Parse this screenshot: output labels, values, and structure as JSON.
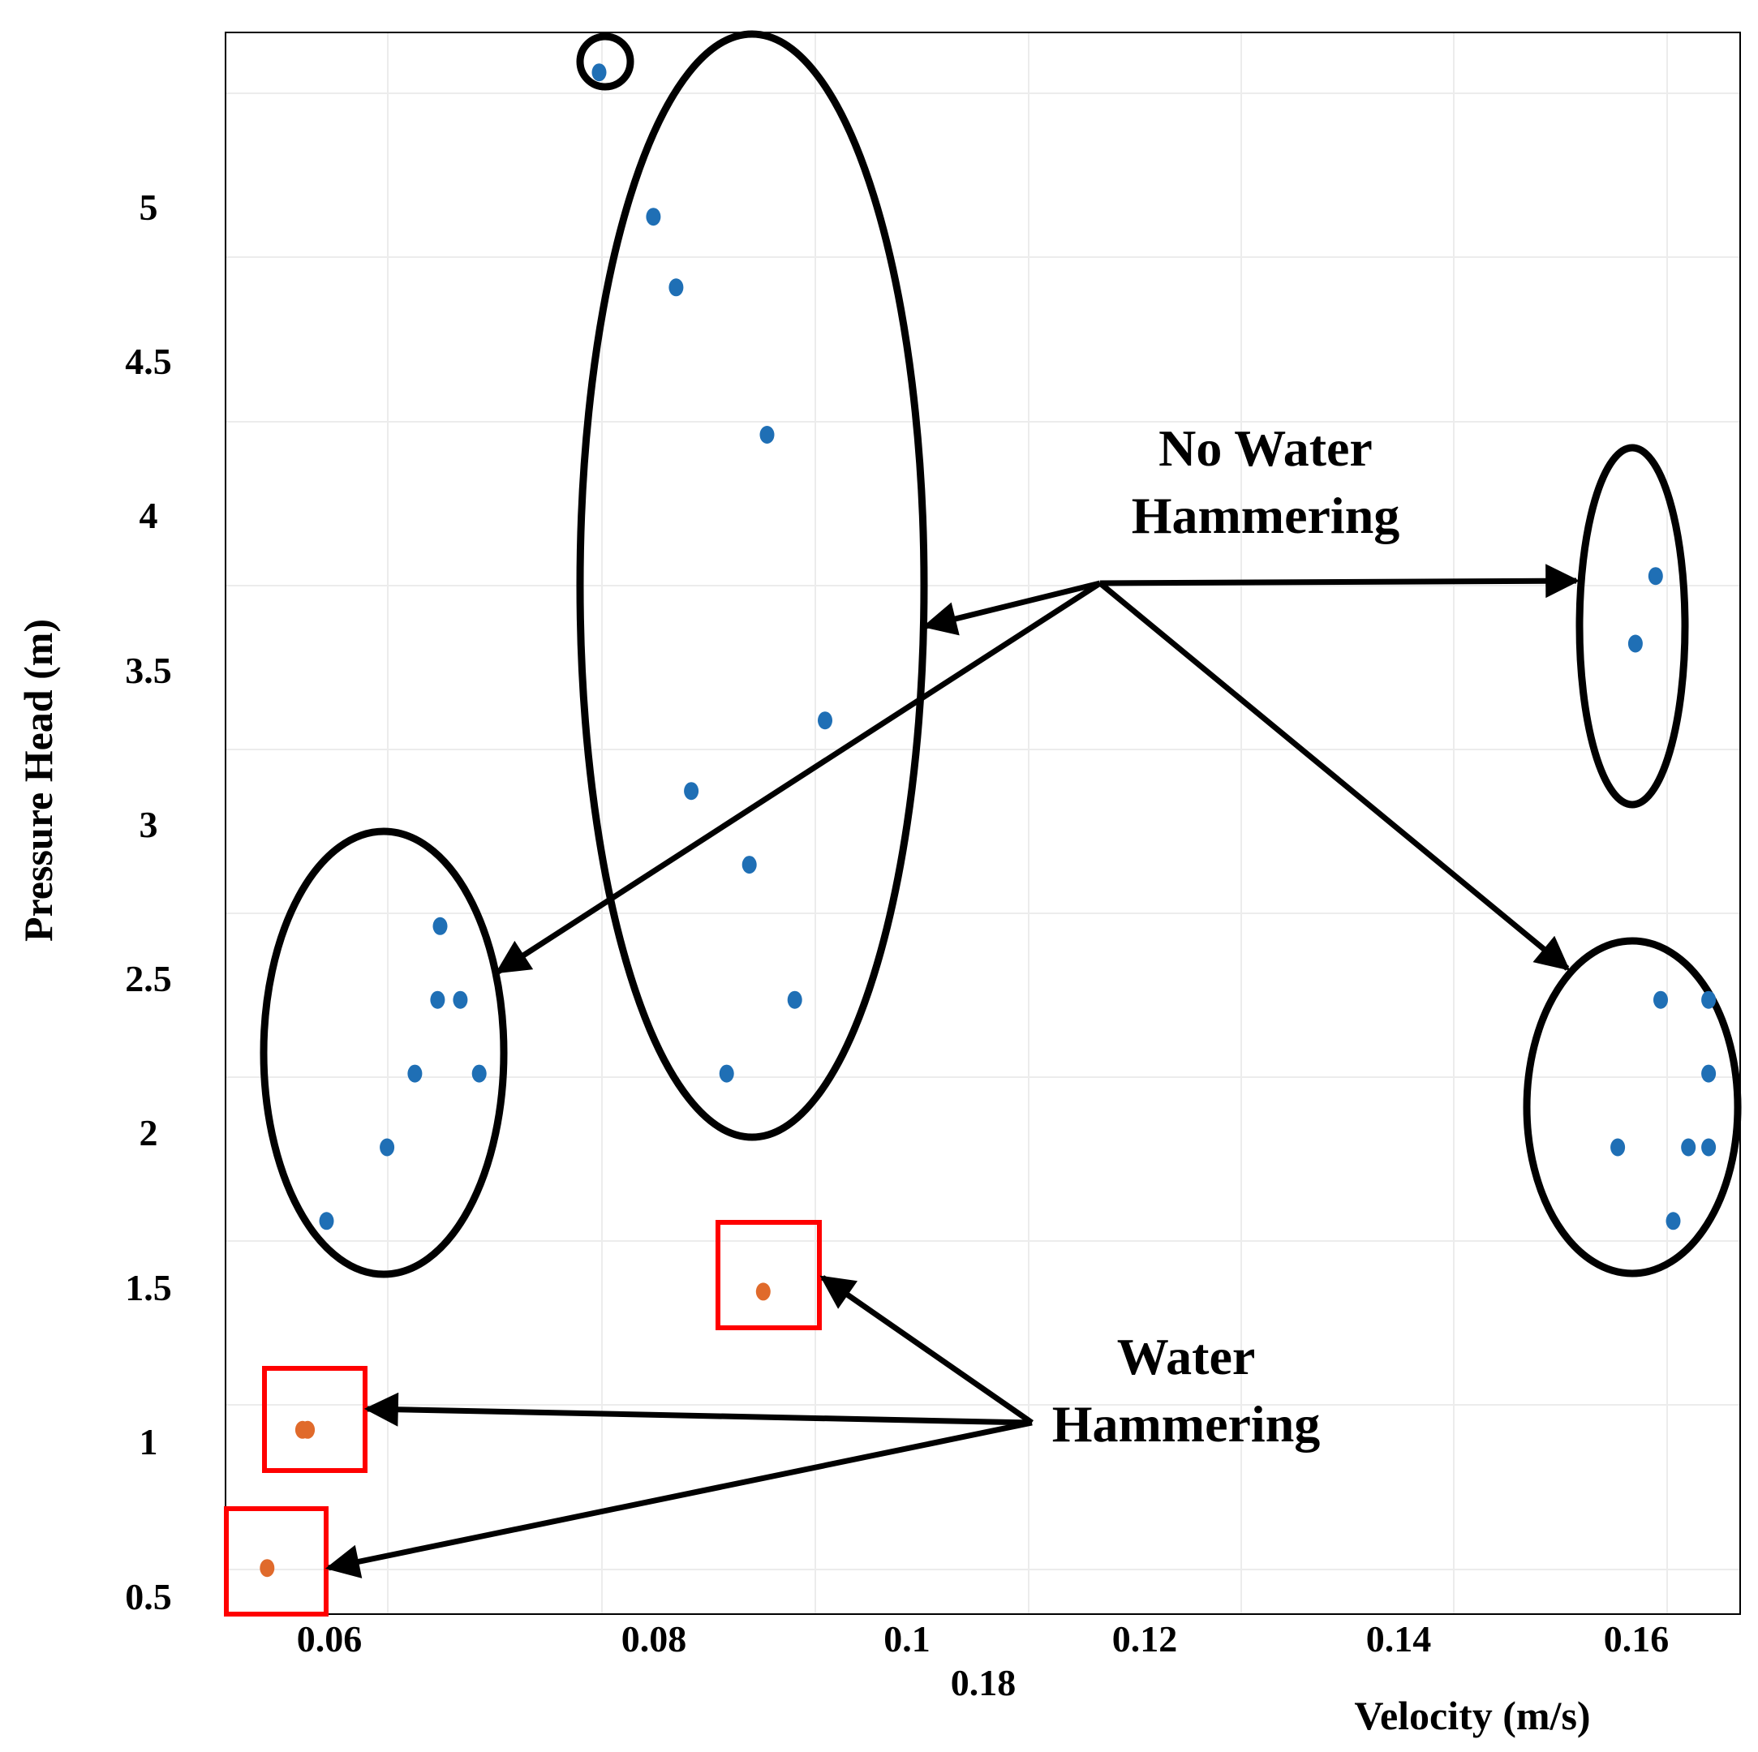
{
  "chart_data": {
    "type": "scatter",
    "xlabel": "Velocity (m/s)",
    "ylabel": "Pressure Head (m)",
    "x_tick_labels": [
      "0.06",
      "0.08",
      "0.1",
      "0.12",
      "0.14",
      "0.16"
    ],
    "x_extra_label": "0.18",
    "y_tick_labels": [
      "0.5",
      "1",
      "1.5",
      "2",
      "2.5",
      "3",
      "3.5",
      "4",
      "4.5",
      "5"
    ],
    "xlim": [
      0.0515,
      0.1715
    ],
    "ylim": [
      0.45,
      5.6
    ],
    "grid": true,
    "series": [
      {
        "name": "No Water Hammering",
        "color": "#1f6fb5",
        "points": [
          [
            0.0595,
            1.73
          ],
          [
            0.0643,
            1.97
          ],
          [
            0.0665,
            2.21
          ],
          [
            0.0683,
            2.45
          ],
          [
            0.0685,
            2.69
          ],
          [
            0.0701,
            2.45
          ],
          [
            0.0716,
            2.21
          ],
          [
            0.0811,
            5.47
          ],
          [
            0.0854,
            5.0
          ],
          [
            0.0872,
            4.77
          ],
          [
            0.0884,
            3.13
          ],
          [
            0.0912,
            2.21
          ],
          [
            0.093,
            2.89
          ],
          [
            0.0944,
            4.29
          ],
          [
            0.0966,
            2.45
          ],
          [
            0.099,
            3.36
          ],
          [
            0.1632,
            3.61
          ],
          [
            0.1648,
            3.83
          ],
          [
            0.1618,
            1.97
          ],
          [
            0.1652,
            2.45
          ],
          [
            0.1662,
            1.73
          ],
          [
            0.1674,
            1.97
          ],
          [
            0.169,
            2.45
          ],
          [
            0.169,
            2.21
          ],
          [
            0.169,
            1.97
          ]
        ]
      },
      {
        "name": "Water Hammering",
        "color": "#e06a2b",
        "points": [
          [
            0.0548,
            0.6
          ],
          [
            0.0576,
            1.05
          ],
          [
            0.058,
            1.05
          ],
          [
            0.0941,
            1.5
          ]
        ]
      }
    ],
    "annotations": [
      {
        "id": "no_hammer",
        "lines": [
          "No Water",
          "Hammering"
        ]
      },
      {
        "id": "hammer",
        "lines": [
          "Water",
          "Hammering"
        ]
      }
    ]
  },
  "colors": {
    "ellipse": "#000000",
    "box": "#ff0000"
  }
}
